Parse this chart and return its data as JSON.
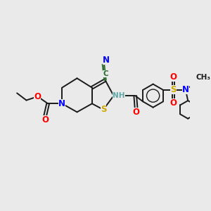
{
  "background_color": "#eaeaea",
  "figsize": [
    3.0,
    3.0
  ],
  "dpi": 100,
  "colors": {
    "C": "#000000",
    "N": "#0000ff",
    "O": "#ff0000",
    "S": "#ccaa00",
    "NH": "#5fa8a8",
    "CN_C": "#2d6b2d",
    "bond": "#1a1a1a"
  },
  "bond_lw": 1.4,
  "font_size": 8.5,
  "font_size_sm": 7.5
}
